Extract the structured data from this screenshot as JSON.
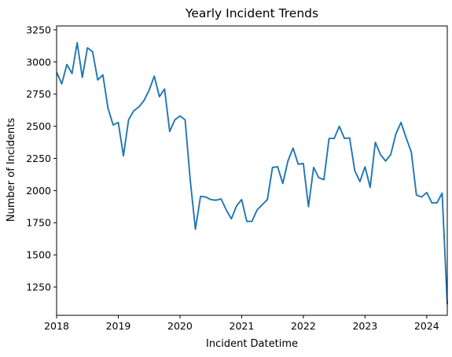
{
  "chart_data": {
    "type": "line",
    "title": "Yearly Incident Trends",
    "xlabel": "Incident Datetime",
    "ylabel": "Number of Incidents",
    "xlim": [
      "2018-01",
      "2024-05"
    ],
    "ylim": [
      1030,
      3280
    ],
    "xticks": [
      {
        "label": "2018",
        "value": "2018-01"
      },
      {
        "label": "2019",
        "value": "2019-01"
      },
      {
        "label": "2020",
        "value": "2020-01"
      },
      {
        "label": "2021",
        "value": "2021-01"
      },
      {
        "label": "2022",
        "value": "2022-01"
      },
      {
        "label": "2023",
        "value": "2023-01"
      },
      {
        "label": "2024",
        "value": "2024-01"
      }
    ],
    "yticks": [
      1250,
      1500,
      1750,
      2000,
      2250,
      2500,
      2750,
      3000,
      3250
    ],
    "grid": false,
    "line_color": "#1f77b4",
    "series": [
      {
        "x": [
          "2018-01",
          "2018-02",
          "2018-03",
          "2018-04",
          "2018-05",
          "2018-06",
          "2018-07",
          "2018-08",
          "2018-09",
          "2018-10",
          "2018-11",
          "2018-12",
          "2019-01",
          "2019-02",
          "2019-03",
          "2019-04",
          "2019-05",
          "2019-06",
          "2019-07",
          "2019-08",
          "2019-09",
          "2019-10",
          "2019-11",
          "2019-12",
          "2020-01",
          "2020-02",
          "2020-03",
          "2020-04",
          "2020-05",
          "2020-06",
          "2020-07",
          "2020-08",
          "2020-09",
          "2020-10",
          "2020-11",
          "2020-12",
          "2021-01",
          "2021-02",
          "2021-03",
          "2021-04",
          "2021-05",
          "2021-06",
          "2021-07",
          "2021-08",
          "2021-09",
          "2021-10",
          "2021-11",
          "2021-12",
          "2022-01",
          "2022-02",
          "2022-03",
          "2022-04",
          "2022-05",
          "2022-06",
          "2022-07",
          "2022-08",
          "2022-09",
          "2022-10",
          "2022-11",
          "2022-12",
          "2023-01",
          "2023-02",
          "2023-03",
          "2023-04",
          "2023-05",
          "2023-06",
          "2023-07",
          "2023-08",
          "2023-09",
          "2023-10",
          "2023-11",
          "2023-12",
          "2024-01",
          "2024-02",
          "2024-03",
          "2024-04",
          "2024-05"
        ],
        "y": [
          2920,
          2830,
          2980,
          2910,
          3150,
          2880,
          3110,
          3080,
          2860,
          2900,
          2640,
          2510,
          2530,
          2270,
          2550,
          2620,
          2650,
          2700,
          2780,
          2890,
          2730,
          2790,
          2460,
          2550,
          2580,
          2550,
          2080,
          1700,
          1955,
          1950,
          1930,
          1925,
          1935,
          1850,
          1780,
          1880,
          1930,
          1760,
          1760,
          1850,
          1890,
          1930,
          2180,
          2185,
          2055,
          2230,
          2330,
          2205,
          2210,
          1875,
          2180,
          2100,
          2085,
          2405,
          2405,
          2500,
          2405,
          2410,
          2155,
          2070,
          2185,
          2025,
          2375,
          2280,
          2230,
          2280,
          2440,
          2530,
          2410,
          2300,
          1965,
          1950,
          1985,
          1905,
          1905,
          1980,
          1115
        ]
      }
    ]
  }
}
